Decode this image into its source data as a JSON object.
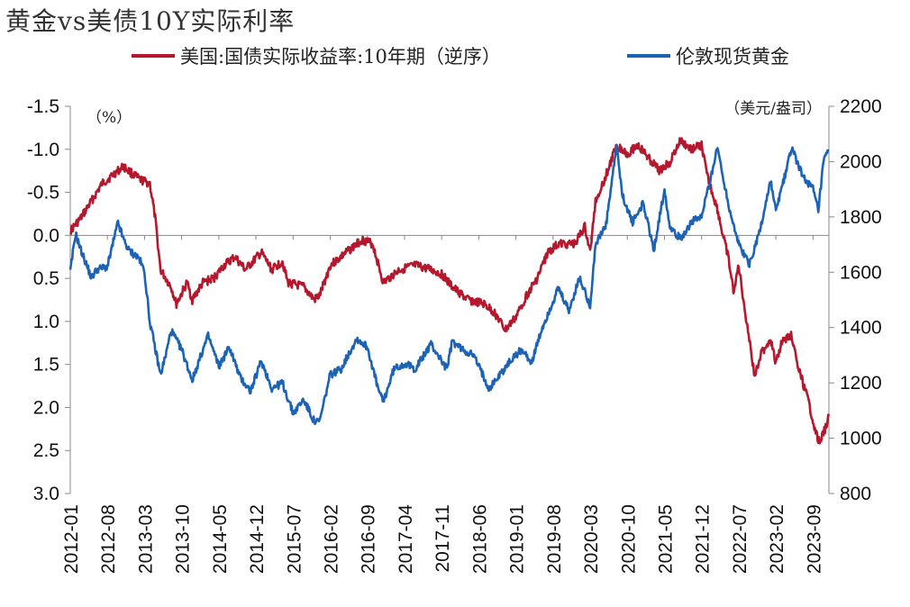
{
  "chart_data": {
    "type": "line",
    "title": "黄金vs美债10Y实际利率",
    "left_axis": {
      "unit": "（%）",
      "ticks": [
        "-1.5",
        "-1.0",
        "-0.5",
        "0.0",
        "0.5",
        "1.0",
        "1.5",
        "2.0",
        "2.5",
        "3.0"
      ],
      "range": [
        -1.5,
        3.0
      ],
      "inverted": true
    },
    "right_axis": {
      "unit": "（美元/盎司）",
      "ticks": [
        "800",
        "1000",
        "1200",
        "1400",
        "1600",
        "1800",
        "2000",
        "2200"
      ],
      "range": [
        800,
        2200
      ]
    },
    "x_ticks": [
      "2012-01",
      "2012-08",
      "2013-03",
      "2013-10",
      "2014-05",
      "2014-12",
      "2015-07",
      "2016-02",
      "2016-09",
      "2017-04",
      "2017-11",
      "2018-06",
      "2019-01",
      "2019-08",
      "2020-03",
      "2020-10",
      "2021-05",
      "2021-12",
      "2022-07",
      "2023-02",
      "2023-09"
    ],
    "x_range": [
      "2012-01",
      "2023-12"
    ],
    "grid": false,
    "legend_position": "top",
    "series": [
      {
        "name": "美国:国债实际收益率:10年期（逆序）",
        "axis": "left",
        "color": "#B5172D",
        "points": [
          [
            "2012-01",
            -0.05
          ],
          [
            "2012-03",
            -0.2
          ],
          [
            "2012-05",
            -0.4
          ],
          [
            "2012-07",
            -0.6
          ],
          [
            "2012-09",
            -0.7
          ],
          [
            "2012-11",
            -0.8
          ],
          [
            "2012-12",
            -0.75
          ],
          [
            "2013-02",
            -0.65
          ],
          [
            "2013-04",
            -0.6
          ],
          [
            "2013-05",
            -0.2
          ],
          [
            "2013-06",
            0.4
          ],
          [
            "2013-08",
            0.6
          ],
          [
            "2013-09",
            0.8
          ],
          [
            "2013-11",
            0.55
          ],
          [
            "2013-12",
            0.75
          ],
          [
            "2014-02",
            0.55
          ],
          [
            "2014-04",
            0.5
          ],
          [
            "2014-06",
            0.35
          ],
          [
            "2014-08",
            0.25
          ],
          [
            "2014-10",
            0.4
          ],
          [
            "2015-01",
            0.2
          ],
          [
            "2015-03",
            0.4
          ],
          [
            "2015-05",
            0.3
          ],
          [
            "2015-06",
            0.55
          ],
          [
            "2015-09",
            0.6
          ],
          [
            "2015-11",
            0.75
          ],
          [
            "2015-12",
            0.7
          ],
          [
            "2016-02",
            0.35
          ],
          [
            "2016-04",
            0.25
          ],
          [
            "2016-06",
            0.15
          ],
          [
            "2016-08",
            0.05
          ],
          [
            "2016-10",
            0.1
          ],
          [
            "2016-12",
            0.55
          ],
          [
            "2017-03",
            0.4
          ],
          [
            "2017-06",
            0.35
          ],
          [
            "2017-09",
            0.4
          ],
          [
            "2017-11",
            0.45
          ],
          [
            "2018-01",
            0.6
          ],
          [
            "2018-04",
            0.75
          ],
          [
            "2018-07",
            0.8
          ],
          [
            "2018-09",
            0.9
          ],
          [
            "2018-11",
            1.1
          ],
          [
            "2019-01",
            0.95
          ],
          [
            "2019-03",
            0.7
          ],
          [
            "2019-05",
            0.5
          ],
          [
            "2019-07",
            0.2
          ],
          [
            "2019-09",
            0.1
          ],
          [
            "2019-12",
            0.1
          ],
          [
            "2020-02",
            -0.1
          ],
          [
            "2020-03",
            0.2
          ],
          [
            "2020-04",
            -0.4
          ],
          [
            "2020-06",
            -0.7
          ],
          [
            "2020-08",
            -1.05
          ],
          [
            "2020-10",
            -0.95
          ],
          [
            "2020-12",
            -1.05
          ],
          [
            "2021-02",
            -0.9
          ],
          [
            "2021-04",
            -0.75
          ],
          [
            "2021-06",
            -0.85
          ],
          [
            "2021-08",
            -1.1
          ],
          [
            "2021-10",
            -1.0
          ],
          [
            "2021-12",
            -1.05
          ],
          [
            "2022-01",
            -0.7
          ],
          [
            "2022-03",
            -0.3
          ],
          [
            "2022-04",
            0.0
          ],
          [
            "2022-05",
            0.25
          ],
          [
            "2022-06",
            0.65
          ],
          [
            "2022-07",
            0.35
          ],
          [
            "2022-08",
            0.8
          ],
          [
            "2022-09",
            1.2
          ],
          [
            "2022-10",
            1.65
          ],
          [
            "2022-11",
            1.4
          ],
          [
            "2022-12",
            1.3
          ],
          [
            "2023-01",
            1.2
          ],
          [
            "2023-02",
            1.5
          ],
          [
            "2023-03",
            1.25
          ],
          [
            "2023-05",
            1.15
          ],
          [
            "2023-06",
            1.5
          ],
          [
            "2023-08",
            1.9
          ],
          [
            "2023-09",
            2.15
          ],
          [
            "2023-10",
            2.4
          ],
          [
            "2023-11",
            2.3
          ],
          [
            "2023-12",
            2.1
          ]
        ]
      },
      {
        "name": "伦敦现货黄金",
        "axis": "right",
        "color": "#1D63B5",
        "points": [
          [
            "2012-01",
            1600
          ],
          [
            "2012-02",
            1740
          ],
          [
            "2012-03",
            1680
          ],
          [
            "2012-05",
            1580
          ],
          [
            "2012-06",
            1610
          ],
          [
            "2012-08",
            1620
          ],
          [
            "2012-10",
            1780
          ],
          [
            "2012-11",
            1720
          ],
          [
            "2012-12",
            1680
          ],
          [
            "2013-02",
            1650
          ],
          [
            "2013-03",
            1600
          ],
          [
            "2013-04",
            1420
          ],
          [
            "2013-06",
            1230
          ],
          [
            "2013-07",
            1300
          ],
          [
            "2013-08",
            1390
          ],
          [
            "2013-10",
            1320
          ],
          [
            "2013-12",
            1210
          ],
          [
            "2014-02",
            1320
          ],
          [
            "2014-03",
            1370
          ],
          [
            "2014-05",
            1260
          ],
          [
            "2014-07",
            1330
          ],
          [
            "2014-09",
            1220
          ],
          [
            "2014-11",
            1170
          ],
          [
            "2015-01",
            1280
          ],
          [
            "2015-03",
            1180
          ],
          [
            "2015-05",
            1200
          ],
          [
            "2015-07",
            1090
          ],
          [
            "2015-09",
            1140
          ],
          [
            "2015-11",
            1060
          ],
          [
            "2015-12",
            1060
          ],
          [
            "2016-02",
            1230
          ],
          [
            "2016-04",
            1250
          ],
          [
            "2016-07",
            1360
          ],
          [
            "2016-09",
            1330
          ],
          [
            "2016-11",
            1180
          ],
          [
            "2016-12",
            1130
          ],
          [
            "2017-02",
            1250
          ],
          [
            "2017-04",
            1270
          ],
          [
            "2017-06",
            1250
          ],
          [
            "2017-09",
            1340
          ],
          [
            "2017-12",
            1250
          ],
          [
            "2018-01",
            1350
          ],
          [
            "2018-03",
            1320
          ],
          [
            "2018-05",
            1300
          ],
          [
            "2018-08",
            1180
          ],
          [
            "2018-10",
            1230
          ],
          [
            "2018-12",
            1280
          ],
          [
            "2019-02",
            1320
          ],
          [
            "2019-04",
            1275
          ],
          [
            "2019-06",
            1400
          ],
          [
            "2019-09",
            1540
          ],
          [
            "2019-11",
            1460
          ],
          [
            "2020-01",
            1580
          ],
          [
            "2020-03",
            1480
          ],
          [
            "2020-04",
            1700
          ],
          [
            "2020-06",
            1770
          ],
          [
            "2020-08",
            2060
          ],
          [
            "2020-09",
            1880
          ],
          [
            "2020-11",
            1780
          ],
          [
            "2021-01",
            1850
          ],
          [
            "2021-03",
            1680
          ],
          [
            "2021-05",
            1900
          ],
          [
            "2021-06",
            1770
          ],
          [
            "2021-08",
            1720
          ],
          [
            "2021-10",
            1780
          ],
          [
            "2021-12",
            1800
          ],
          [
            "2022-03",
            2050
          ],
          [
            "2022-05",
            1850
          ],
          [
            "2022-07",
            1700
          ],
          [
            "2022-09",
            1630
          ],
          [
            "2022-11",
            1750
          ],
          [
            "2023-01",
            1930
          ],
          [
            "2023-02",
            1820
          ],
          [
            "2023-05",
            2050
          ],
          [
            "2023-07",
            1950
          ],
          [
            "2023-09",
            1900
          ],
          [
            "2023-10",
            1820
          ],
          [
            "2023-11",
            2000
          ],
          [
            "2023-12",
            2040
          ]
        ]
      }
    ]
  }
}
